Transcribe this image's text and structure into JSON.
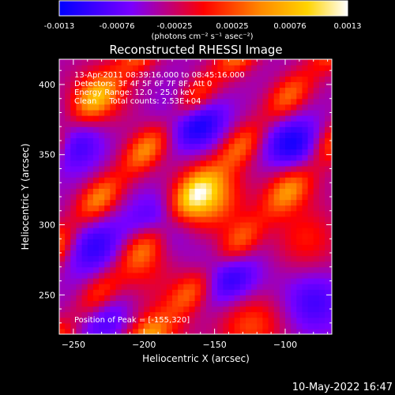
{
  "chart_data": {
    "type": "heatmap",
    "title": "Reconstructed RHESSI Image",
    "xlabel": "Heliocentric X (arcsec)",
    "ylabel": "Heliocentric Y (arcsec)",
    "xlim": [
      -260,
      -67
    ],
    "ylim": [
      222,
      418
    ],
    "xticks": [
      -250,
      -200,
      -150,
      -100
    ],
    "yticks": [
      250,
      300,
      350,
      400
    ],
    "colorbar": {
      "ticks": [
        -0.0013,
        -0.00076,
        -0.00025,
        0.00025,
        0.00076,
        0.0013
      ],
      "tick_labels": [
        "-0.0013",
        "-0.00076",
        "-0.00025",
        "0.00025",
        "0.00076",
        "0.0013"
      ],
      "range": [
        -0.0013,
        0.0013
      ],
      "unit_label": "(photons cm⁻² s⁻¹ asec⁻²)",
      "colors": [
        "#0000ff",
        "#7a00ff",
        "#ff0000",
        "#ff8a00",
        "#ffd400",
        "#ffffff"
      ]
    },
    "annotations": [
      "13-Apr-2011 08:39:16.000 to 08:45:16.000",
      "Detectors: 3F 4F 5F 6F 7F 8F, Att 0",
      "Energy Range: 12.0 - 25.0 keV",
      "Clean     Total counts: 2.53E+04"
    ],
    "peak_label": "Position of Peak = [-155,320]",
    "peak": {
      "x": -155,
      "y": 320
    },
    "ridges": [
      {
        "at_x_minus250_y": 374,
        "amp": 0.00085,
        "sx": 12,
        "sy": 35
      },
      {
        "at_x_minus250_y": 300,
        "amp": 0.001,
        "sx": 12,
        "sy": 35
      },
      {
        "at_x_minus250_y": 232,
        "amp": 0.00085,
        "sx": 12,
        "sy": 35
      },
      {
        "at_x_minus250_y": 165,
        "amp": 0.0008,
        "sx": 12,
        "sy": 35
      }
    ],
    "blobs": [
      {
        "x": -155,
        "y": 320,
        "amp": 0.0011
      },
      {
        "x": -197,
        "y": 270,
        "amp": 0.0004
      },
      {
        "x": -232,
        "y": 392,
        "amp": 0.0005
      },
      {
        "x": -125,
        "y": 230,
        "amp": 0.0007
      },
      {
        "x": -85,
        "y": 290,
        "amp": 0.0005
      },
      {
        "x": -95,
        "y": 335,
        "amp": 0.0004
      },
      {
        "x": -190,
        "y": 222,
        "amp": 0.0004
      }
    ],
    "troughs": [
      {
        "x": -165,
        "y": 375,
        "amp": -0.0009
      },
      {
        "x": -95,
        "y": 355,
        "amp": -0.0009
      },
      {
        "x": -190,
        "y": 300,
        "amp": -0.0006
      },
      {
        "x": -235,
        "y": 285,
        "amp": -0.0006
      },
      {
        "x": -140,
        "y": 262,
        "amp": -0.0007
      },
      {
        "x": -80,
        "y": 245,
        "amp": -0.0005
      },
      {
        "x": -230,
        "y": 235,
        "amp": -0.0005
      },
      {
        "x": -250,
        "y": 360,
        "amp": -0.0006
      }
    ]
  },
  "footer": {
    "timestamp": "10-May-2022 16:47"
  }
}
